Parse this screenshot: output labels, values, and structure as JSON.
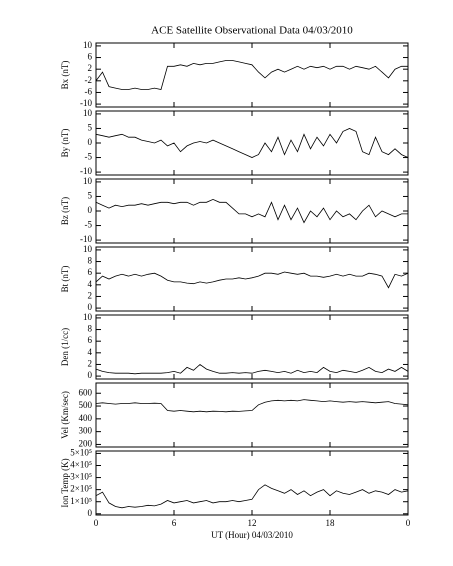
{
  "title": "ACE Satellite Observational Data  04/03/2010",
  "chart_data": [
    {
      "type": "line",
      "ylabel": "Bx (nT)",
      "xlim": [
        0,
        24
      ],
      "ylim": [
        -11,
        11
      ],
      "yticks": [
        -10,
        -6,
        -2,
        2,
        6,
        10
      ],
      "xticks": [
        0,
        6,
        12,
        18,
        {
          "value": 24,
          "label": "0"
        }
      ],
      "color": "#000000",
      "x": [
        0,
        0.5,
        1,
        1.5,
        2,
        2.5,
        3,
        3.5,
        4,
        4.5,
        5,
        5.5,
        6,
        6.5,
        7,
        7.5,
        8,
        8.5,
        9,
        9.5,
        10,
        10.5,
        11,
        11.5,
        12,
        12.5,
        13,
        13.5,
        14,
        14.5,
        15,
        15.5,
        16,
        16.5,
        17,
        17.5,
        18,
        18.5,
        19,
        19.5,
        20,
        20.5,
        21,
        21.5,
        22,
        22.5,
        23,
        23.5,
        24
      ],
      "values": [
        -2,
        1,
        -4,
        -4.5,
        -5,
        -5,
        -4.5,
        -5,
        -5,
        -4.5,
        -5,
        3,
        3,
        3.5,
        3,
        4,
        3.5,
        4,
        4,
        4.5,
        5,
        5,
        4.5,
        4,
        3.5,
        1,
        -1,
        1,
        2,
        1,
        2,
        3,
        2,
        3,
        2.5,
        3,
        2,
        3,
        3,
        2,
        3,
        2.5,
        2,
        3,
        1,
        -1,
        2,
        3,
        3
      ]
    },
    {
      "type": "line",
      "ylabel": "By (nT)",
      "xlim": [
        0,
        24
      ],
      "ylim": [
        -11,
        11
      ],
      "yticks": [
        -10,
        -5,
        0,
        5,
        10
      ],
      "xticks": [
        0,
        6,
        12,
        18,
        {
          "value": 24,
          "label": "0"
        }
      ],
      "color": "#000000",
      "x": [
        0,
        0.5,
        1,
        1.5,
        2,
        2.5,
        3,
        3.5,
        4,
        4.5,
        5,
        5.5,
        6,
        6.5,
        7,
        7.5,
        8,
        8.5,
        9,
        9.5,
        10,
        10.5,
        11,
        11.5,
        12,
        12.5,
        13,
        13.5,
        14,
        14.5,
        15,
        15.5,
        16,
        16.5,
        17,
        17.5,
        18,
        18.5,
        19,
        19.5,
        20,
        20.5,
        21,
        21.5,
        22,
        22.5,
        23,
        23.5,
        24
      ],
      "values": [
        3,
        2.5,
        2,
        2.5,
        3,
        2,
        2,
        1,
        0.5,
        0,
        1,
        -1,
        0,
        -3,
        -1,
        0,
        0.5,
        0,
        1,
        0,
        -1,
        -2,
        -3,
        -4,
        -5,
        -4,
        0,
        -3,
        2,
        -4,
        1,
        -3,
        3,
        -2,
        2,
        -1,
        3,
        0,
        4,
        5,
        4,
        -3,
        -4,
        2,
        -3,
        -4,
        -2,
        -4,
        -5
      ]
    },
    {
      "type": "line",
      "ylabel": "Bz (nT)",
      "xlim": [
        0,
        24
      ],
      "ylim": [
        -11,
        11
      ],
      "yticks": [
        -10,
        -5,
        0,
        5,
        10
      ],
      "xticks": [
        0,
        6,
        12,
        18,
        {
          "value": 24,
          "label": "0"
        }
      ],
      "color": "#000000",
      "x": [
        0,
        0.5,
        1,
        1.5,
        2,
        2.5,
        3,
        3.5,
        4,
        4.5,
        5,
        5.5,
        6,
        6.5,
        7,
        7.5,
        8,
        8.5,
        9,
        9.5,
        10,
        10.5,
        11,
        11.5,
        12,
        12.5,
        13,
        13.5,
        14,
        14.5,
        15,
        15.5,
        16,
        16.5,
        17,
        17.5,
        18,
        18.5,
        19,
        19.5,
        20,
        20.5,
        21,
        21.5,
        22,
        22.5,
        23,
        23.5,
        24
      ],
      "values": [
        3,
        2,
        1,
        2,
        1.5,
        2,
        2,
        2.5,
        2,
        2.5,
        3,
        3,
        2.5,
        3,
        3,
        2,
        3,
        3,
        4,
        3,
        3,
        1,
        -1,
        -1,
        -2,
        -1,
        -2,
        3,
        -3,
        2,
        -3,
        1,
        -4,
        0,
        -2,
        1,
        -3,
        0,
        -2,
        -1,
        -3,
        0,
        2,
        -2,
        0,
        -1,
        -2,
        -1,
        -1
      ]
    },
    {
      "type": "line",
      "ylabel": "Bt (nT)",
      "xlim": [
        0,
        24
      ],
      "ylim": [
        -0.5,
        10.5
      ],
      "yticks": [
        0,
        2,
        4,
        6,
        8,
        10
      ],
      "xticks": [
        0,
        6,
        12,
        18,
        {
          "value": 24,
          "label": "0"
        }
      ],
      "color": "#000000",
      "x": [
        0,
        0.5,
        1,
        1.5,
        2,
        2.5,
        3,
        3.5,
        4,
        4.5,
        5,
        5.5,
        6,
        6.5,
        7,
        7.5,
        8,
        8.5,
        9,
        9.5,
        10,
        10.5,
        11,
        11.5,
        12,
        12.5,
        13,
        13.5,
        14,
        14.5,
        15,
        15.5,
        16,
        16.5,
        17,
        17.5,
        18,
        18.5,
        19,
        19.5,
        20,
        20.5,
        21,
        21.5,
        22,
        22.5,
        23,
        23.5,
        24
      ],
      "values": [
        4.5,
        5.5,
        5,
        5.5,
        5.8,
        5.5,
        5.8,
        5.5,
        5.8,
        6,
        5.5,
        4.8,
        4.5,
        4.5,
        4.3,
        4.2,
        4.5,
        4.3,
        4.5,
        4.8,
        5,
        5,
        5.2,
        5,
        5.2,
        5.5,
        6,
        6,
        5.8,
        6.2,
        6,
        5.8,
        6,
        5.5,
        5.5,
        5.3,
        5.5,
        5.8,
        5.5,
        5.8,
        5.5,
        5.5,
        6,
        5.8,
        5.5,
        3.5,
        5.8,
        5.5,
        6
      ]
    },
    {
      "type": "line",
      "ylabel": "Den (1/cc)",
      "xlim": [
        0,
        24
      ],
      "ylim": [
        -0.5,
        10.5
      ],
      "yticks": [
        0,
        2,
        4,
        6,
        8,
        10
      ],
      "xticks": [
        0,
        6,
        12,
        18,
        {
          "value": 24,
          "label": "0"
        }
      ],
      "color": "#000000",
      "x": [
        0,
        0.5,
        1,
        1.5,
        2,
        2.5,
        3,
        3.5,
        4,
        4.5,
        5,
        5.5,
        6,
        6.5,
        7,
        7.5,
        8,
        8.5,
        9,
        9.5,
        10,
        10.5,
        11,
        11.5,
        12,
        12.5,
        13,
        13.5,
        14,
        14.5,
        15,
        15.5,
        16,
        16.5,
        17,
        17.5,
        18,
        18.5,
        19,
        19.5,
        20,
        20.5,
        21,
        21.5,
        22,
        22.5,
        23,
        23.5,
        24
      ],
      "values": [
        1.2,
        0.8,
        0.6,
        0.5,
        0.5,
        0.5,
        0.4,
        0.5,
        0.5,
        0.5,
        0.5,
        0.6,
        0.8,
        0.5,
        1.5,
        1,
        2,
        1.2,
        0.8,
        0.5,
        0.5,
        0.6,
        0.5,
        0.6,
        0.5,
        0.8,
        1,
        0.8,
        0.6,
        0.8,
        0.5,
        1,
        0.6,
        0.8,
        0.6,
        1.5,
        0.8,
        0.6,
        1,
        0.8,
        0.6,
        1,
        1.5,
        0.8,
        0.6,
        1.2,
        0.8,
        1.5,
        0.8
      ]
    },
    {
      "type": "line",
      "ylabel": "Vel (Km/sec)",
      "xlim": [
        0,
        24
      ],
      "ylim": [
        180,
        680
      ],
      "yticks": [
        200,
        300,
        400,
        500,
        600
      ],
      "xticks": [
        0,
        6,
        12,
        18,
        {
          "value": 24,
          "label": "0"
        }
      ],
      "color": "#000000",
      "x": [
        0,
        0.5,
        1,
        1.5,
        2,
        2.5,
        3,
        3.5,
        4,
        4.5,
        5,
        5.5,
        6,
        6.5,
        7,
        7.5,
        8,
        8.5,
        9,
        9.5,
        10,
        10.5,
        11,
        11.5,
        12,
        12.5,
        13,
        13.5,
        14,
        14.5,
        15,
        15.5,
        16,
        16.5,
        17,
        17.5,
        18,
        18.5,
        19,
        19.5,
        20,
        20.5,
        21,
        21.5,
        22,
        22.5,
        23,
        23.5,
        24
      ],
      "values": [
        520,
        525,
        520,
        515,
        520,
        520,
        525,
        520,
        520,
        522,
        520,
        465,
        460,
        465,
        460,
        455,
        460,
        455,
        460,
        458,
        455,
        460,
        458,
        462,
        465,
        510,
        530,
        540,
        545,
        540,
        545,
        540,
        550,
        545,
        540,
        535,
        540,
        535,
        530,
        535,
        530,
        535,
        530,
        525,
        530,
        535,
        520,
        515,
        510
      ]
    },
    {
      "type": "line",
      "ylabel": "Ion Temp (K)",
      "xlabel": "UT (Hour)  04/03/2010",
      "xlim": [
        0,
        24
      ],
      "ylim": [
        -10000,
        520000
      ],
      "yticks": [
        0,
        {
          "value": 100000,
          "label": "1×10⁵"
        },
        {
          "value": 200000,
          "label": "2×10⁵"
        },
        {
          "value": 300000,
          "label": "3×10⁵"
        },
        {
          "value": 400000,
          "label": "4×10⁵"
        },
        {
          "value": 500000,
          "label": "5×10⁵"
        }
      ],
      "xticks": [
        0,
        6,
        12,
        18,
        {
          "value": 24,
          "label": "0"
        }
      ],
      "color": "#000000",
      "x": [
        0,
        0.5,
        1,
        1.5,
        2,
        2.5,
        3,
        3.5,
        4,
        4.5,
        5,
        5.5,
        6,
        6.5,
        7,
        7.5,
        8,
        8.5,
        9,
        9.5,
        10,
        10.5,
        11,
        11.5,
        12,
        12.5,
        13,
        13.5,
        14,
        14.5,
        15,
        15.5,
        16,
        16.5,
        17,
        17.5,
        18,
        18.5,
        19,
        19.5,
        20,
        20.5,
        21,
        21.5,
        22,
        22.5,
        23,
        23.5,
        24
      ],
      "values": [
        150000,
        180000,
        90000,
        60000,
        50000,
        60000,
        55000,
        60000,
        70000,
        65000,
        80000,
        110000,
        90000,
        100000,
        110000,
        90000,
        100000,
        110000,
        90000,
        100000,
        100000,
        110000,
        100000,
        110000,
        120000,
        200000,
        240000,
        210000,
        190000,
        170000,
        200000,
        160000,
        190000,
        150000,
        180000,
        200000,
        150000,
        190000,
        170000,
        160000,
        180000,
        200000,
        170000,
        190000,
        180000,
        160000,
        200000,
        180000,
        190000
      ]
    }
  ]
}
